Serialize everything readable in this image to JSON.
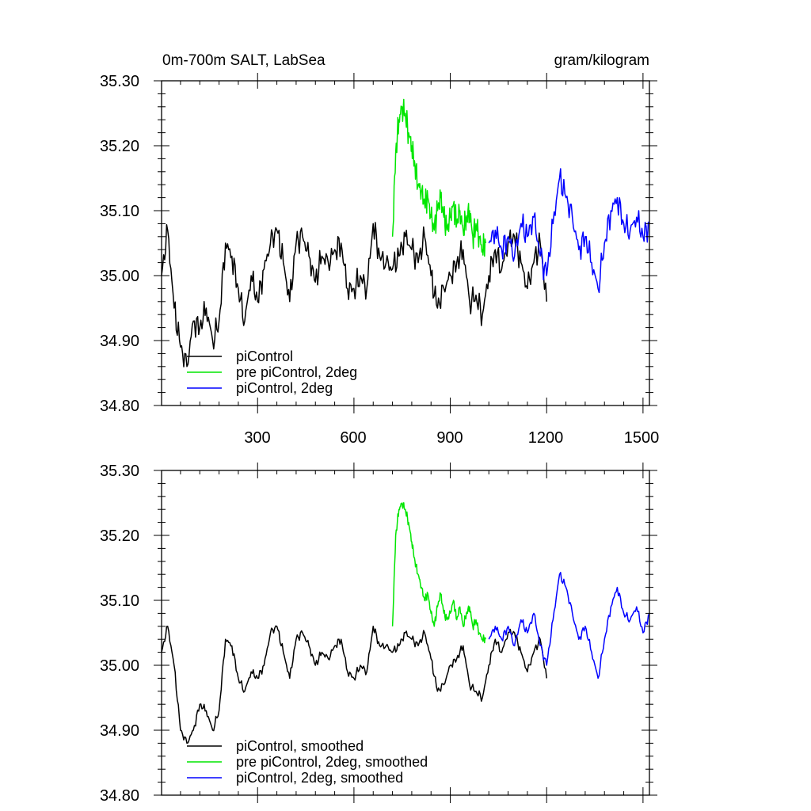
{
  "chart_data": [
    {
      "type": "line",
      "title_left": "0m-700m SALT, LabSea",
      "title_right": "gram/kilogram",
      "xlim": [
        1,
        1520
      ],
      "ylim": [
        34.8,
        35.3
      ],
      "x_ticks": [
        300,
        600,
        900,
        1200,
        1500
      ],
      "x_tick_labels": [
        "300",
        "600",
        "900",
        "1200",
        "1500"
      ],
      "y_ticks": [
        34.8,
        34.9,
        35.0,
        35.1,
        35.2,
        35.3
      ],
      "y_tick_labels": [
        "34.80",
        "34.90",
        "35.00",
        "35.10",
        "35.20",
        "35.30"
      ],
      "legend_position": "bottom-left",
      "series": [
        {
          "name": "piControl",
          "color": "#000000",
          "x": [
            1,
            20,
            40,
            60,
            80,
            100,
            120,
            140,
            160,
            180,
            200,
            220,
            240,
            260,
            280,
            300,
            320,
            340,
            360,
            380,
            400,
            420,
            440,
            460,
            480,
            500,
            520,
            540,
            560,
            580,
            600,
            620,
            640,
            660,
            680,
            700,
            720,
            740,
            760,
            780,
            800,
            820,
            840,
            860,
            880,
            900,
            920,
            940,
            960,
            980,
            1000,
            1020,
            1040,
            1060,
            1080,
            1100,
            1120,
            1140,
            1160,
            1180,
            1200
          ],
          "y": [
            35.0,
            35.07,
            34.95,
            34.89,
            34.86,
            34.93,
            34.92,
            34.95,
            34.9,
            34.93,
            35.05,
            35.03,
            34.98,
            34.93,
            35.0,
            34.96,
            35.01,
            35.05,
            35.07,
            35.02,
            34.96,
            35.05,
            35.06,
            35.03,
            34.99,
            35.03,
            35.02,
            35.04,
            35.05,
            34.98,
            34.98,
            35.0,
            34.98,
            35.08,
            35.03,
            35.02,
            35.01,
            35.03,
            35.06,
            35.04,
            35.02,
            35.06,
            35.0,
            34.95,
            34.98,
            35.0,
            35.02,
            35.04,
            34.96,
            34.97,
            34.94,
            35.0,
            35.04,
            35.01,
            35.05,
            35.06,
            35.02,
            34.98,
            35.02,
            35.05,
            34.96
          ]
        },
        {
          "name": "pre piControl, 2deg",
          "color": "#00e600",
          "x": [
            720,
            730,
            740,
            750,
            760,
            770,
            780,
            790,
            800,
            810,
            820,
            830,
            840,
            850,
            860,
            870,
            880,
            890,
            900,
            910,
            920,
            930,
            940,
            950,
            960,
            970,
            980,
            990,
            1000,
            1010
          ],
          "y": [
            35.06,
            35.19,
            35.24,
            35.26,
            35.25,
            35.22,
            35.2,
            35.17,
            35.14,
            35.13,
            35.11,
            35.12,
            35.09,
            35.07,
            35.1,
            35.12,
            35.09,
            35.07,
            35.09,
            35.11,
            35.08,
            35.1,
            35.07,
            35.09,
            35.1,
            35.06,
            35.08,
            35.06,
            35.04,
            35.05
          ]
        },
        {
          "name": "piControl, 2deg",
          "color": "#0000ff",
          "x": [
            1020,
            1040,
            1060,
            1080,
            1100,
            1120,
            1140,
            1160,
            1180,
            1200,
            1220,
            1240,
            1260,
            1280,
            1300,
            1320,
            1340,
            1360,
            1380,
            1400,
            1420,
            1440,
            1460,
            1480,
            1500,
            1520
          ],
          "y": [
            35.05,
            35.07,
            35.04,
            35.06,
            35.03,
            35.08,
            35.06,
            35.09,
            35.03,
            35.0,
            35.08,
            35.15,
            35.12,
            35.09,
            35.04,
            35.06,
            35.02,
            34.98,
            35.05,
            35.1,
            35.12,
            35.08,
            35.07,
            35.09,
            35.06,
            35.08
          ]
        }
      ],
      "legend": [
        "piControl",
        "pre piControl, 2deg",
        "piControl, 2deg"
      ]
    },
    {
      "type": "line",
      "xlim": [
        1,
        1520
      ],
      "ylim": [
        34.8,
        35.3
      ],
      "x_ticks": [
        300,
        600,
        900,
        1200,
        1500
      ],
      "y_ticks": [
        34.8,
        34.9,
        35.0,
        35.1,
        35.2,
        35.3
      ],
      "y_tick_labels": [
        "34.80",
        "34.90",
        "35.00",
        "35.10",
        "35.20",
        "35.30"
      ],
      "legend_position": "bottom-left",
      "series": [
        {
          "name": "piControl, smoothed",
          "color": "#000000",
          "x": [
            1,
            20,
            40,
            60,
            80,
            100,
            120,
            140,
            160,
            180,
            200,
            220,
            240,
            260,
            280,
            300,
            320,
            340,
            360,
            380,
            400,
            420,
            440,
            460,
            480,
            500,
            520,
            540,
            560,
            580,
            600,
            620,
            640,
            660,
            680,
            700,
            720,
            740,
            760,
            780,
            800,
            820,
            840,
            860,
            880,
            900,
            920,
            940,
            960,
            980,
            1000,
            1020,
            1040,
            1060,
            1080,
            1100,
            1120,
            1140,
            1160,
            1180,
            1200
          ],
          "y": [
            35.02,
            35.06,
            35.0,
            34.9,
            34.88,
            34.9,
            34.94,
            34.93,
            34.9,
            34.93,
            35.04,
            35.03,
            34.98,
            34.96,
            34.99,
            34.98,
            35.0,
            35.05,
            35.06,
            35.02,
            34.98,
            35.04,
            35.05,
            35.03,
            35.0,
            35.02,
            35.01,
            35.03,
            35.04,
            34.99,
            34.98,
            35.0,
            34.99,
            35.06,
            35.03,
            35.03,
            35.02,
            35.03,
            35.05,
            35.04,
            35.03,
            35.05,
            35.01,
            34.96,
            34.97,
            35.0,
            35.01,
            35.03,
            34.97,
            34.96,
            34.95,
            35.0,
            35.04,
            35.02,
            35.05,
            35.05,
            35.02,
            34.99,
            35.02,
            35.04,
            34.98
          ]
        },
        {
          "name": "pre piControl, 2deg, smoothed",
          "color": "#00e600",
          "x": [
            720,
            730,
            740,
            750,
            760,
            770,
            780,
            790,
            800,
            810,
            820,
            830,
            840,
            850,
            860,
            870,
            880,
            890,
            900,
            910,
            920,
            930,
            940,
            950,
            960,
            970,
            980,
            990,
            1000,
            1010
          ],
          "y": [
            35.06,
            35.2,
            35.24,
            35.25,
            35.24,
            35.22,
            35.19,
            35.16,
            35.14,
            35.12,
            35.1,
            35.11,
            35.08,
            35.06,
            35.09,
            35.11,
            35.08,
            35.07,
            35.08,
            35.1,
            35.07,
            35.09,
            35.06,
            35.08,
            35.09,
            35.06,
            35.07,
            35.05,
            35.04,
            35.04
          ]
        },
        {
          "name": "piControl, 2deg, smoothed",
          "color": "#0000ff",
          "x": [
            1020,
            1040,
            1060,
            1080,
            1100,
            1120,
            1140,
            1160,
            1180,
            1200,
            1220,
            1240,
            1260,
            1280,
            1300,
            1320,
            1340,
            1360,
            1380,
            1400,
            1420,
            1440,
            1460,
            1480,
            1500,
            1520
          ],
          "y": [
            35.04,
            35.06,
            35.04,
            35.06,
            35.03,
            35.07,
            35.05,
            35.08,
            35.03,
            35.0,
            35.07,
            35.14,
            35.12,
            35.08,
            35.04,
            35.06,
            35.02,
            34.98,
            35.04,
            35.09,
            35.12,
            35.08,
            35.07,
            35.09,
            35.05,
            35.08
          ]
        }
      ],
      "legend": [
        "piControl, smoothed",
        "pre piControl, 2deg, smoothed",
        "piControl, 2deg, smoothed"
      ]
    }
  ]
}
